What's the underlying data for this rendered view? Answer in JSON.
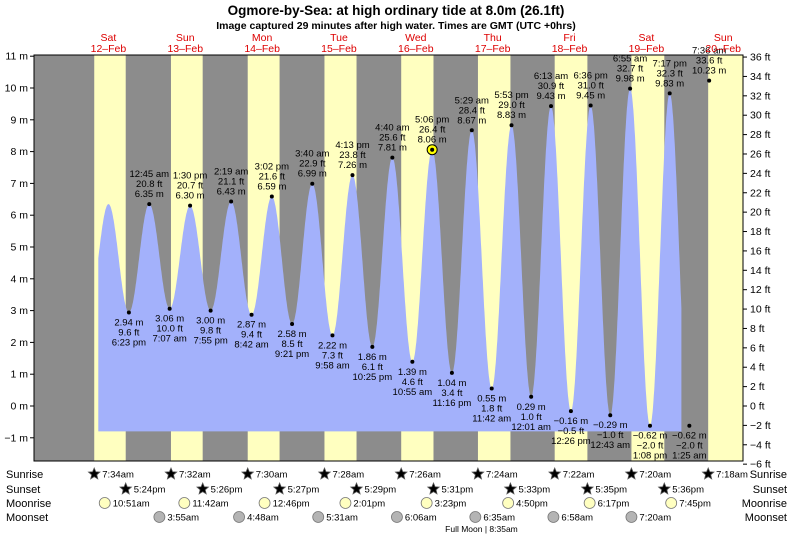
{
  "chart_data": {
    "type": "area",
    "title": "Ogmore-by-Sea: at high  ordinary tide at 8.0m (26.1ft)",
    "subtitle": "Image captured 29 minutes after high water. Times are GMT (UTC +0hrs)",
    "ylabel_left": "m",
    "ylabel_right": "ft",
    "ylim_m": [
      -1.37,
      11.4
    ],
    "yticks_m": [
      -1,
      0,
      1,
      2,
      3,
      4,
      5,
      6,
      7,
      8,
      9,
      10,
      11
    ],
    "ytick_labels_m": [
      "−1 m",
      "0 m",
      "1 m",
      "2 m",
      "3 m",
      "4 m",
      "5 m",
      "6 m",
      "7 m",
      "8 m",
      "9 m",
      "10 m",
      "11 m"
    ],
    "ytick_labels_ft": [
      "−6 ft",
      "−4 ft",
      "−2 ft",
      "0 ft",
      "2 ft",
      "4 ft",
      "6 ft",
      "8 ft",
      "10 ft",
      "12 ft",
      "14 ft",
      "16 ft",
      "18 ft",
      "20 ft",
      "22 ft",
      "24 ft",
      "26 ft",
      "28 ft",
      "30 ft",
      "32 ft",
      "34 ft",
      "36 ft"
    ],
    "yticks_ft": [
      -6,
      -4,
      -2,
      0,
      2,
      4,
      6,
      8,
      10,
      12,
      14,
      16,
      18,
      20,
      22,
      24,
      26,
      28,
      30,
      32,
      34,
      36
    ],
    "days": [
      {
        "day": "Sat",
        "date": "12–Feb"
      },
      {
        "day": "Sun",
        "date": "13–Feb"
      },
      {
        "day": "Mon",
        "date": "14–Feb"
      },
      {
        "day": "Tue",
        "date": "15–Feb"
      },
      {
        "day": "Wed",
        "date": "16–Feb"
      },
      {
        "day": "Thu",
        "date": "17–Feb"
      },
      {
        "day": "Fri",
        "date": "18–Feb"
      },
      {
        "day": "Sat",
        "date": "19–Feb"
      },
      {
        "day": "Sun",
        "date": "20–Feb"
      }
    ],
    "tides": [
      {
        "type": "low",
        "time": "6:23 pm",
        "m": 2.94,
        "ft": "9.6 ft",
        "m_label": "2.94 m"
      },
      {
        "type": "high",
        "time": "12:45 am",
        "m": 6.35,
        "ft": "20.8 ft",
        "m_label": "6.35 m"
      },
      {
        "type": "low",
        "time": "7:07 am",
        "m": 3.06,
        "ft": "10.0 ft",
        "m_label": "3.06 m"
      },
      {
        "type": "high",
        "time": "1:30 pm",
        "m": 6.3,
        "ft": "20.7 ft",
        "m_label": "6.30 m"
      },
      {
        "type": "low",
        "time": "7:55 pm",
        "m": 3.0,
        "ft": "9.8 ft",
        "m_label": "3.00 m"
      },
      {
        "type": "high",
        "time": "2:19 am",
        "m": 6.43,
        "ft": "21.1 ft",
        "m_label": "6.43 m"
      },
      {
        "type": "low",
        "time": "8:42 am",
        "m": 2.87,
        "ft": "9.4 ft",
        "m_label": "2.87 m"
      },
      {
        "type": "high",
        "time": "3:02 pm",
        "m": 6.59,
        "ft": "21.6 ft",
        "m_label": "6.59 m"
      },
      {
        "type": "low",
        "time": "9:21 pm",
        "m": 2.58,
        "ft": "8.5 ft",
        "m_label": "2.58 m"
      },
      {
        "type": "high",
        "time": "3:40 am",
        "m": 6.99,
        "ft": "22.9 ft",
        "m_label": "6.99 m"
      },
      {
        "type": "low",
        "time": "9:58 am",
        "m": 2.22,
        "ft": "7.3 ft",
        "m_label": "2.22 m"
      },
      {
        "type": "high",
        "time": "4:13 pm",
        "m": 7.26,
        "ft": "23.8 ft",
        "m_label": "7.26 m"
      },
      {
        "type": "low",
        "time": "10:25 pm",
        "m": 1.86,
        "ft": "6.1 ft",
        "m_label": "1.86 m"
      },
      {
        "type": "high",
        "time": "4:40 am",
        "m": 7.81,
        "ft": "25.6 ft",
        "m_label": "7.81 m"
      },
      {
        "type": "low",
        "time": "10:55 am",
        "m": 1.39,
        "ft": "4.6 ft",
        "m_label": "1.39 m"
      },
      {
        "type": "high",
        "time": "5:06 pm",
        "m": 8.06,
        "ft": "26.4 ft",
        "m_label": "8.06 m",
        "current": true
      },
      {
        "type": "low",
        "time": "11:16 pm",
        "m": 1.04,
        "ft": "3.4 ft",
        "m_label": "1.04 m"
      },
      {
        "type": "high",
        "time": "5:29 am",
        "m": 8.67,
        "ft": "28.4 ft",
        "m_label": "8.67 m"
      },
      {
        "type": "low",
        "time": "11:42 am",
        "m": 0.55,
        "ft": "1.8 ft",
        "m_label": "0.55 m"
      },
      {
        "type": "high",
        "time": "5:53 pm",
        "m": 8.83,
        "ft": "29.0 ft",
        "m_label": "8.83 m"
      },
      {
        "type": "low",
        "time": "12:01 am",
        "m": 0.29,
        "ft": "1.0 ft",
        "m_label": "0.29 m"
      },
      {
        "type": "high",
        "time": "6:13 am",
        "m": 9.43,
        "ft": "30.9 ft",
        "m_label": "9.43 m"
      },
      {
        "type": "low",
        "time": "12:26 pm",
        "m": -0.16,
        "ft": "−0.5 ft",
        "m_label": "−0.16 m"
      },
      {
        "type": "high",
        "time": "6:36 pm",
        "m": 9.45,
        "ft": "31.0 ft",
        "m_label": "9.45 m"
      },
      {
        "type": "low",
        "time": "12:43 am",
        "m": -0.29,
        "ft": "−1.0 ft",
        "m_label": "−0.29 m"
      },
      {
        "type": "high",
        "time": "6:55 am",
        "m": 9.98,
        "ft": "32.7 ft",
        "m_label": "9.98 m"
      },
      {
        "type": "low",
        "time": "1:08 pm",
        "m": -0.62,
        "ft": "−2.0 ft",
        "m_label": "−0.62 m"
      },
      {
        "type": "high",
        "time": "7:17 pm",
        "m": 9.83,
        "ft": "32.3 ft",
        "m_label": "9.83 m"
      },
      {
        "type": "low",
        "time": "1:25 am",
        "m": -0.62,
        "ft": "−2.0 ft",
        "m_label": "−0.62 m"
      },
      {
        "type": "high",
        "time": "7:36 am",
        "m": 10.23,
        "ft": "33.6 ft",
        "m_label": "10.23 m"
      }
    ],
    "rows": {
      "sunrise": {
        "label": "Sunrise",
        "times": [
          "7:34am",
          "7:32am",
          "7:30am",
          "7:28am",
          "7:26am",
          "7:24am",
          "7:22am",
          "7:20am",
          "7:18am"
        ]
      },
      "sunset": {
        "label": "Sunset",
        "times": [
          "5:24pm",
          "5:26pm",
          "5:27pm",
          "5:29pm",
          "5:31pm",
          "5:33pm",
          "5:35pm",
          "5:36pm"
        ]
      },
      "moonrise": {
        "label": "Moonrise",
        "times": [
          "10:51am",
          "11:42am",
          "12:46pm",
          "2:01pm",
          "3:23pm",
          "4:50pm",
          "6:17pm",
          "7:45pm"
        ]
      },
      "moonset": {
        "label": "Moonset",
        "times": [
          "3:55am",
          "4:48am",
          "5:31am",
          "6:06am",
          "6:35am",
          "6:58am",
          "7:20am"
        ]
      }
    },
    "moon_phase_note": "Full Moon | 8:35am",
    "colors": {
      "water": "#a3b1fb",
      "day": "#ffffc0",
      "night": "#8c8c8c",
      "date_text": "#dd0000",
      "sun_fill": "#d9c24a",
      "sunset_fill": "#e67d2e",
      "moonrise_fill": "#ffffc0",
      "moonset_fill": "#b4b4b4"
    }
  }
}
